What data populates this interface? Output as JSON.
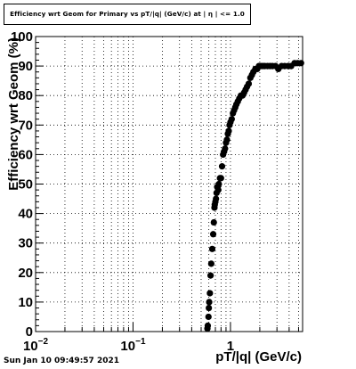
{
  "header": {
    "title": "Efficiency wrt Geom for Primary vs pT/|q| (GeV/c) at | η | <= 1.0"
  },
  "footer": {
    "timestamp": "Sun Jan 10 09:49:57 2021"
  },
  "chart_data": {
    "type": "scatter",
    "title": "Efficiency wrt Geom for Primary vs pT/|q| (GeV/c) at | η | <= 1.0",
    "xlabel": "pT/|q| (GeV/c)",
    "ylabel": "Efficiency wrt Geom (%)",
    "xscale": "log",
    "xlim": [
      0.01,
      5.5
    ],
    "ylim": [
      0,
      100
    ],
    "grid": true,
    "marker_color": "#000000",
    "x_ticks": [
      {
        "value": 0.01,
        "base": "10",
        "exp": "−2"
      },
      {
        "value": 0.1,
        "base": "10",
        "exp": "−1"
      },
      {
        "value": 1,
        "base": "1",
        "exp": ""
      }
    ],
    "y_ticks": [
      "0",
      "10",
      "20",
      "30",
      "40",
      "50",
      "60",
      "70",
      "80",
      "90",
      "100"
    ],
    "series": [
      {
        "points": [
          [
            0.58,
            1
          ],
          [
            0.585,
            2
          ],
          [
            0.595,
            5
          ],
          [
            0.6,
            8
          ],
          [
            0.605,
            10
          ],
          [
            0.615,
            13
          ],
          [
            0.625,
            19
          ],
          [
            0.635,
            23
          ],
          [
            0.65,
            28
          ],
          [
            0.665,
            33
          ],
          [
            0.675,
            37
          ],
          [
            0.685,
            42
          ],
          [
            0.69,
            43
          ],
          [
            0.7,
            44
          ],
          [
            0.71,
            45
          ],
          [
            0.72,
            47
          ],
          [
            0.73,
            49
          ],
          [
            0.74,
            49
          ],
          [
            0.75,
            48
          ],
          [
            0.76,
            50
          ],
          [
            0.78,
            52
          ],
          [
            0.8,
            52
          ],
          [
            0.82,
            56
          ],
          [
            0.84,
            60
          ],
          [
            0.86,
            61
          ],
          [
            0.88,
            62
          ],
          [
            0.9,
            64
          ],
          [
            0.92,
            65
          ],
          [
            0.94,
            67
          ],
          [
            0.96,
            68
          ],
          [
            0.98,
            70
          ],
          [
            1.0,
            71
          ],
          [
            1.03,
            72
          ],
          [
            1.06,
            74
          ],
          [
            1.09,
            75
          ],
          [
            1.12,
            76
          ],
          [
            1.15,
            77
          ],
          [
            1.19,
            78
          ],
          [
            1.23,
            79
          ],
          [
            1.28,
            80
          ],
          [
            1.33,
            80
          ],
          [
            1.38,
            81
          ],
          [
            1.43,
            82
          ],
          [
            1.48,
            83
          ],
          [
            1.54,
            84
          ],
          [
            1.6,
            86
          ],
          [
            1.66,
            87
          ],
          [
            1.72,
            88
          ],
          [
            1.8,
            89
          ],
          [
            1.88,
            89
          ],
          [
            1.96,
            90
          ],
          [
            2.05,
            90
          ],
          [
            2.15,
            90
          ],
          [
            2.25,
            90
          ],
          [
            2.4,
            90
          ],
          [
            2.55,
            90
          ],
          [
            2.7,
            90
          ],
          [
            2.9,
            90
          ],
          [
            3.1,
            89
          ],
          [
            3.35,
            90
          ],
          [
            3.6,
            90
          ],
          [
            3.9,
            90
          ],
          [
            4.2,
            90
          ],
          [
            4.55,
            91
          ],
          [
            4.9,
            91
          ],
          [
            5.3,
            91
          ]
        ]
      }
    ]
  }
}
